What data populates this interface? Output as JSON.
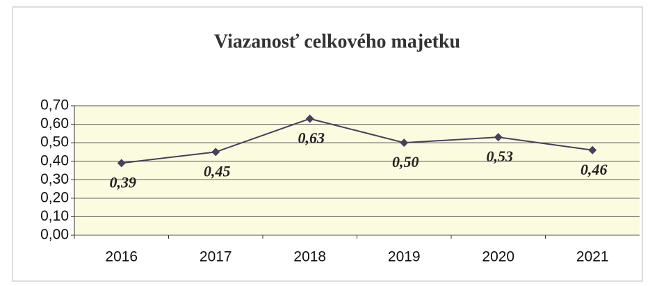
{
  "chart_data": {
    "type": "line",
    "title": "Viazanosť celkového majetku",
    "categories": [
      "2016",
      "2017",
      "2018",
      "2019",
      "2020",
      "2021"
    ],
    "values": [
      0.39,
      0.45,
      0.63,
      0.5,
      0.53,
      0.46
    ],
    "value_labels": [
      "0,39",
      "0,45",
      "0,63",
      "0,50",
      "0,53",
      "0,46"
    ],
    "color": "#4b3d5c",
    "ylim": [
      0,
      0.7
    ],
    "yticks": [
      {
        "value": 0,
        "label": "0,00"
      },
      {
        "value": 0.1,
        "label": "0,10"
      },
      {
        "value": 0.2,
        "label": "0,20"
      },
      {
        "value": 0.3,
        "label": "0,30"
      },
      {
        "value": 0.4,
        "label": "0,40"
      },
      {
        "value": 0.5,
        "label": "0,50"
      },
      {
        "value": 0.6,
        "label": "0,60"
      },
      {
        "value": 0.7,
        "label": "0,70"
      }
    ],
    "grid": true
  }
}
